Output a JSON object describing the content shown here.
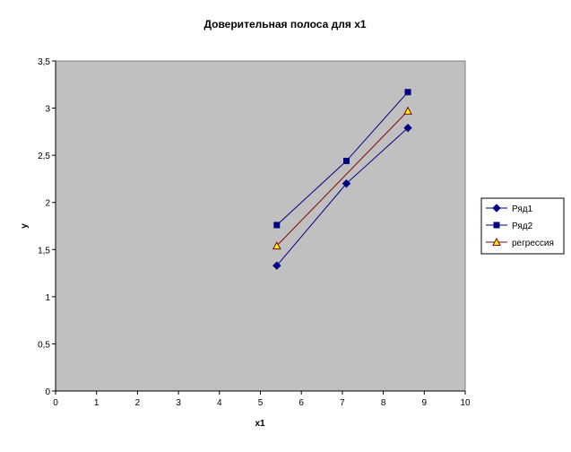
{
  "chart_data": {
    "type": "line",
    "title": "Доверительная полоса для x1",
    "xlabel": "x1",
    "ylabel": "y",
    "xlim": [
      0,
      10
    ],
    "ylim": [
      0,
      3.5
    ],
    "x_ticks": [
      "0",
      "1",
      "2",
      "3",
      "4",
      "5",
      "6",
      "7",
      "8",
      "9",
      "10"
    ],
    "y_ticks": [
      "0",
      "0,5",
      "1",
      "1,5",
      "2",
      "2,5",
      "3",
      "3,5"
    ],
    "grid": false,
    "legend_position": "right",
    "plot_background": "#c0c0c0",
    "series": [
      {
        "name": "Ряд1",
        "x": [
          5.4,
          7.1,
          8.6
        ],
        "y": [
          1.33,
          2.2,
          2.79
        ],
        "color": "#000080",
        "marker": "diamond",
        "marker_fill": "#000080"
      },
      {
        "name": "Ряд2",
        "x": [
          5.4,
          7.1,
          8.6
        ],
        "y": [
          1.76,
          2.44,
          3.17
        ],
        "color": "#000080",
        "marker": "square",
        "marker_fill": "#000080"
      },
      {
        "name": "регрессия",
        "x": [
          5.4,
          8.6
        ],
        "y": [
          1.54,
          2.97
        ],
        "color": "#800000",
        "marker": "triangle",
        "marker_fill": "#ffff00"
      }
    ]
  }
}
